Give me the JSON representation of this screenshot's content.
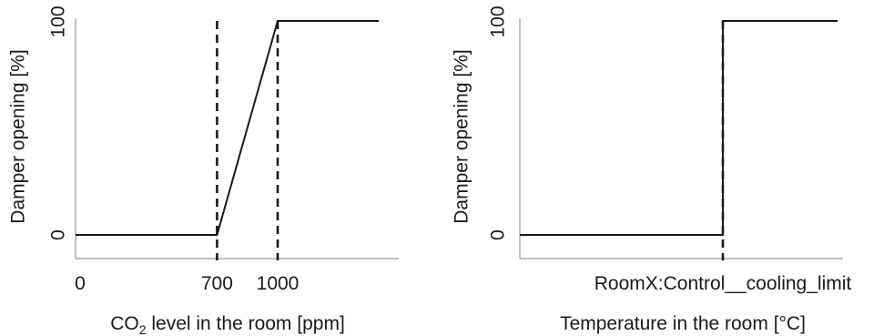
{
  "chart_data": [
    {
      "type": "line",
      "title": "",
      "xlabel": "CO₂ level in the room [ppm]",
      "xlabel_main": "CO",
      "xlabel_sub": "2",
      "xlabel_rest": " level in the room [ppm]",
      "ylabel": "Damper opening [%]",
      "x_ticks": [
        "0",
        "700",
        "1000"
      ],
      "y_ticks": [
        "0",
        "100"
      ],
      "xlim": [
        0,
        1500
      ],
      "ylim": [
        0,
        100
      ],
      "series": [
        {
          "x": [
            0,
            700,
            1000,
            1500
          ],
          "y": [
            0,
            0,
            100,
            100
          ]
        }
      ],
      "guides_x": [
        700,
        1000
      ]
    },
    {
      "type": "line",
      "title": "",
      "xlabel": "Temperature in the room [°C]",
      "ylabel": "Damper opening [%]",
      "x_ticks": [
        "RoomX:Control__cooling_limit"
      ],
      "y_ticks": [
        "0",
        "100"
      ],
      "ylim": [
        0,
        100
      ],
      "series": [
        {
          "x": [
            "",
            "RoomX:Control__cooling_limit",
            "RoomX:Control__cooling_limit",
            ""
          ],
          "y": [
            0,
            0,
            100,
            100
          ]
        }
      ],
      "guides_x": [
        "RoomX:Control__cooling_limit"
      ]
    }
  ]
}
